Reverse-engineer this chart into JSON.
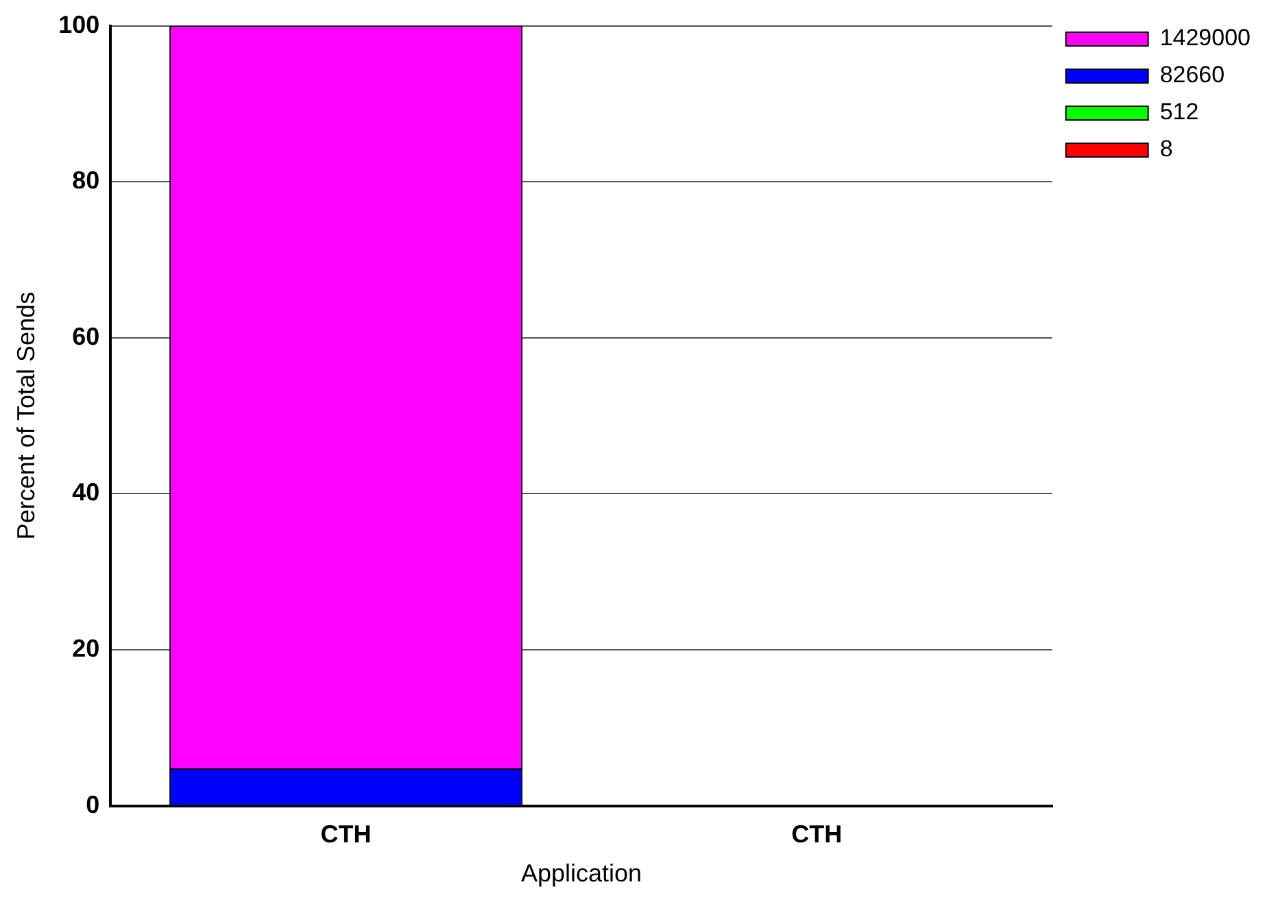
{
  "chart_data": {
    "type": "bar",
    "stacked": true,
    "xlabel": "Application",
    "ylabel": "Percent of Total Sends",
    "categories": [
      "CTH",
      "CTH"
    ],
    "series": [
      {
        "name": "8",
        "color": "#ff0000",
        "values": [
          0,
          null
        ]
      },
      {
        "name": "512",
        "color": "#00ff00",
        "values": [
          0,
          null
        ]
      },
      {
        "name": "82660",
        "color": "#0000ff",
        "values": [
          4.8,
          null
        ]
      },
      {
        "name": "1429000",
        "color": "#ff00ff",
        "values": [
          95.2,
          null
        ]
      }
    ],
    "ylim": [
      0,
      100
    ],
    "yticks": [
      0,
      20,
      40,
      60,
      80,
      100
    ],
    "grid": "y",
    "legend": "top right"
  }
}
